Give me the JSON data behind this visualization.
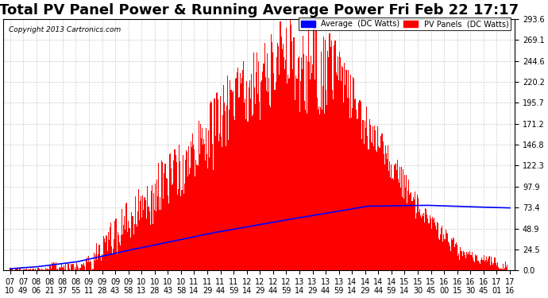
{
  "title": "Total PV Panel Power & Running Average Power Fri Feb 22 17:17",
  "copyright": "Copyright 2013 Cartronics.com",
  "legend_avg": "Average  (DC Watts)",
  "legend_pv": "PV Panels  (DC Watts)",
  "ymax": 293.6,
  "yticks": [
    0.0,
    24.5,
    48.9,
    73.4,
    97.9,
    122.3,
    146.8,
    171.2,
    195.7,
    220.2,
    244.6,
    269.1,
    293.6
  ],
  "bg_color": "#ffffff",
  "plot_bg_color": "#ffffff",
  "bar_color": "#ff0000",
  "avg_line_color": "#0000ff",
  "grid_color": "#cccccc",
  "title_fontsize": 13,
  "tick_fontsize": 7,
  "x_labels": [
    "07:10",
    "07:49",
    "08:06",
    "08:21",
    "08:37",
    "08:55",
    "09:11",
    "09:28",
    "09:43",
    "09:58",
    "10:13",
    "10:28",
    "10:43",
    "10:58",
    "11:14",
    "11:29",
    "11:44",
    "11:59",
    "12:14",
    "12:29",
    "12:44",
    "12:59",
    "13:14",
    "13:29",
    "13:44",
    "13:59",
    "14:14",
    "14:29",
    "14:44",
    "14:59",
    "15:14",
    "15:30",
    "15:45",
    "16:00",
    "16:15",
    "16:30",
    "16:45",
    "17:01",
    "17:16"
  ]
}
